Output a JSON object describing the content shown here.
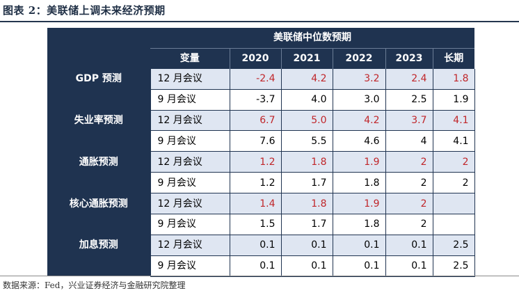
{
  "figure_title": "图表 2：美联储上调未来经济预期",
  "source_note": "数据来源：Fed，兴业证券经济与金融研究院整理",
  "table": {
    "group_header": "美联储中位数预期",
    "columns": [
      "变量",
      "2020",
      "2021",
      "2022",
      "2023",
      "长期"
    ],
    "colors": {
      "header_bg": "#1f3350",
      "highlight_bg": "#dfe6f2",
      "highlight_text": "#c0262a"
    },
    "groups": [
      {
        "label": "GDP 预测",
        "rows": [
          {
            "meeting": "12 月会议",
            "values": [
              "-2.4",
              "4.2",
              "3.2",
              "2.4",
              "1.8"
            ]
          },
          {
            "meeting": "9 月会议",
            "values": [
              "-3.7",
              "4.0",
              "3.0",
              "2.5",
              "1.9"
            ]
          }
        ]
      },
      {
        "label": "失业率预测",
        "rows": [
          {
            "meeting": "12 月会议",
            "values": [
              "6.7",
              "5.0",
              "4.2",
              "3.7",
              "4.1"
            ]
          },
          {
            "meeting": "9 月会议",
            "values": [
              "7.6",
              "5.5",
              "4.6",
              "4",
              "4.1"
            ]
          }
        ]
      },
      {
        "label": "通胀预测",
        "rows": [
          {
            "meeting": "12 月会议",
            "values": [
              "1.2",
              "1.8",
              "1.9",
              "2",
              "2"
            ]
          },
          {
            "meeting": "9 月会议",
            "values": [
              "1.2",
              "1.7",
              "1.8",
              "2",
              "2"
            ]
          }
        ]
      },
      {
        "label": "核心通胀预测",
        "rows": [
          {
            "meeting": "12 月会议",
            "values": [
              "1.4",
              "1.8",
              "1.9",
              "2",
              ""
            ]
          },
          {
            "meeting": "9 月会议",
            "values": [
              "1.5",
              "1.7",
              "1.8",
              "2",
              ""
            ]
          }
        ]
      },
      {
        "label": "加息预测",
        "rows": [
          {
            "meeting": "12 月会议",
            "values": [
              "0.1",
              "0.1",
              "0.1",
              "0.1",
              "2.5"
            ]
          },
          {
            "meeting": "9 月会议",
            "values": [
              "0.1",
              "0.1",
              "0.1",
              "0.1",
              "2.5"
            ]
          }
        ]
      }
    ]
  }
}
